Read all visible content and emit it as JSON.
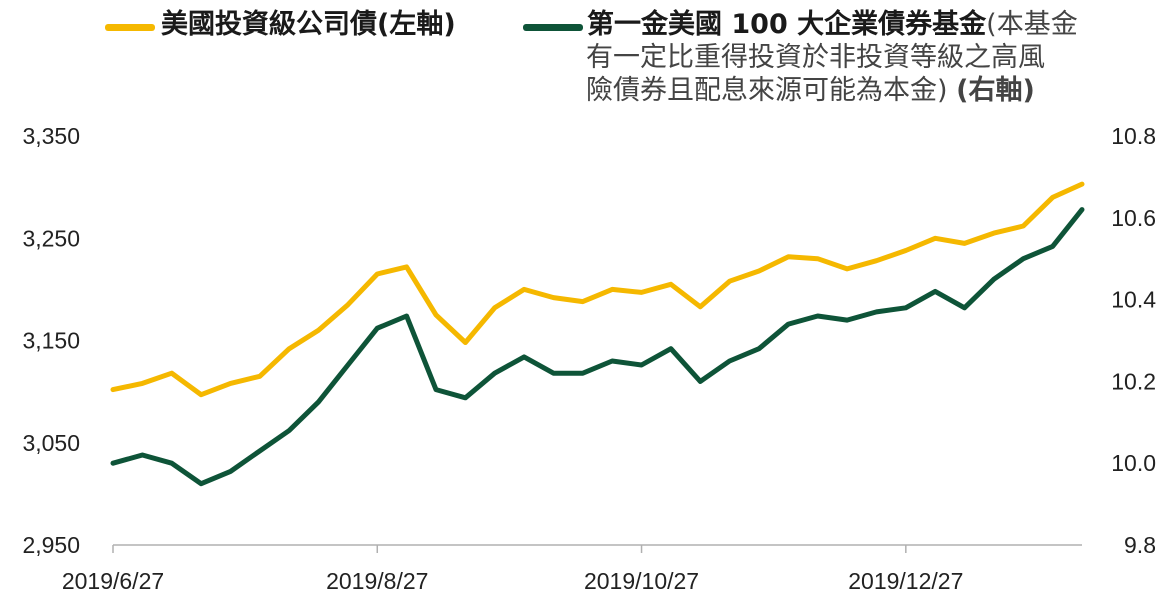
{
  "legend": {
    "series1_label": "美國投資級公司債(左軸)",
    "series2_label": "第一金美國 100 大企業債券基金",
    "series2_note_a": "(本基金",
    "series2_note_b": "有一定比重得投資於非投資等級之高風",
    "series2_note_c": "險債券且配息來源可能為本金)",
    "series2_axis": "(右軸)"
  },
  "colors": {
    "series1": "#F5B800",
    "series2": "#0E5438",
    "axis": "#b0b0b0"
  },
  "chart_data": {
    "type": "line",
    "x": [
      "2019/6/27",
      "2019/7/4",
      "2019/7/11",
      "2019/7/18",
      "2019/7/25",
      "2019/8/1",
      "2019/8/8",
      "2019/8/15",
      "2019/8/22",
      "2019/8/27",
      "2019/9/3",
      "2019/9/10",
      "2019/9/17",
      "2019/9/24",
      "2019/10/1",
      "2019/10/8",
      "2019/10/15",
      "2019/10/22",
      "2019/10/27",
      "2019/11/3",
      "2019/11/10",
      "2019/11/17",
      "2019/11/24",
      "2019/12/1",
      "2019/12/8",
      "2019/12/15",
      "2019/12/22",
      "2019/12/27",
      "2020/1/3",
      "2020/1/10",
      "2020/1/17",
      "2020/1/24",
      "2020/1/31",
      "2020/2/7"
    ],
    "x_ticks": [
      "2019/6/27",
      "2019/8/27",
      "2019/10/27",
      "2019/12/27"
    ],
    "series": [
      {
        "name": "美國投資級公司債(左軸)",
        "axis": "left",
        "values": [
          3102,
          3108,
          3118,
          3097,
          3108,
          3115,
          3142,
          3160,
          3185,
          3215,
          3222,
          3175,
          3148,
          3182,
          3200,
          3192,
          3188,
          3200,
          3197,
          3205,
          3183,
          3208,
          3218,
          3232,
          3230,
          3220,
          3228,
          3238,
          3250,
          3245,
          3255,
          3262,
          3290,
          3303
        ]
      },
      {
        "name": "第一金美國 100 大企業債券基金(本基金有一定比重得投資於非投資等級之高風險債券且配息來源可能為本金) (右軸)",
        "axis": "right",
        "values": [
          10.0,
          10.02,
          10.0,
          9.95,
          9.98,
          10.03,
          10.08,
          10.15,
          10.24,
          10.33,
          10.36,
          10.18,
          10.16,
          10.22,
          10.26,
          10.22,
          10.22,
          10.25,
          10.24,
          10.28,
          10.2,
          10.25,
          10.28,
          10.34,
          10.36,
          10.35,
          10.37,
          10.38,
          10.42,
          10.38,
          10.45,
          10.5,
          10.53,
          10.62
        ]
      }
    ],
    "y_left": {
      "ticks": [
        "3,350",
        "3,250",
        "3,150",
        "3,050",
        "2,950"
      ],
      "min": 2950,
      "max": 3350
    },
    "y_right": {
      "ticks": [
        "10.8",
        "10.6",
        "10.4",
        "10.2",
        "10.0",
        "9.8"
      ],
      "min": 9.8,
      "max": 10.8
    },
    "grid": false,
    "legend_position": "top"
  }
}
